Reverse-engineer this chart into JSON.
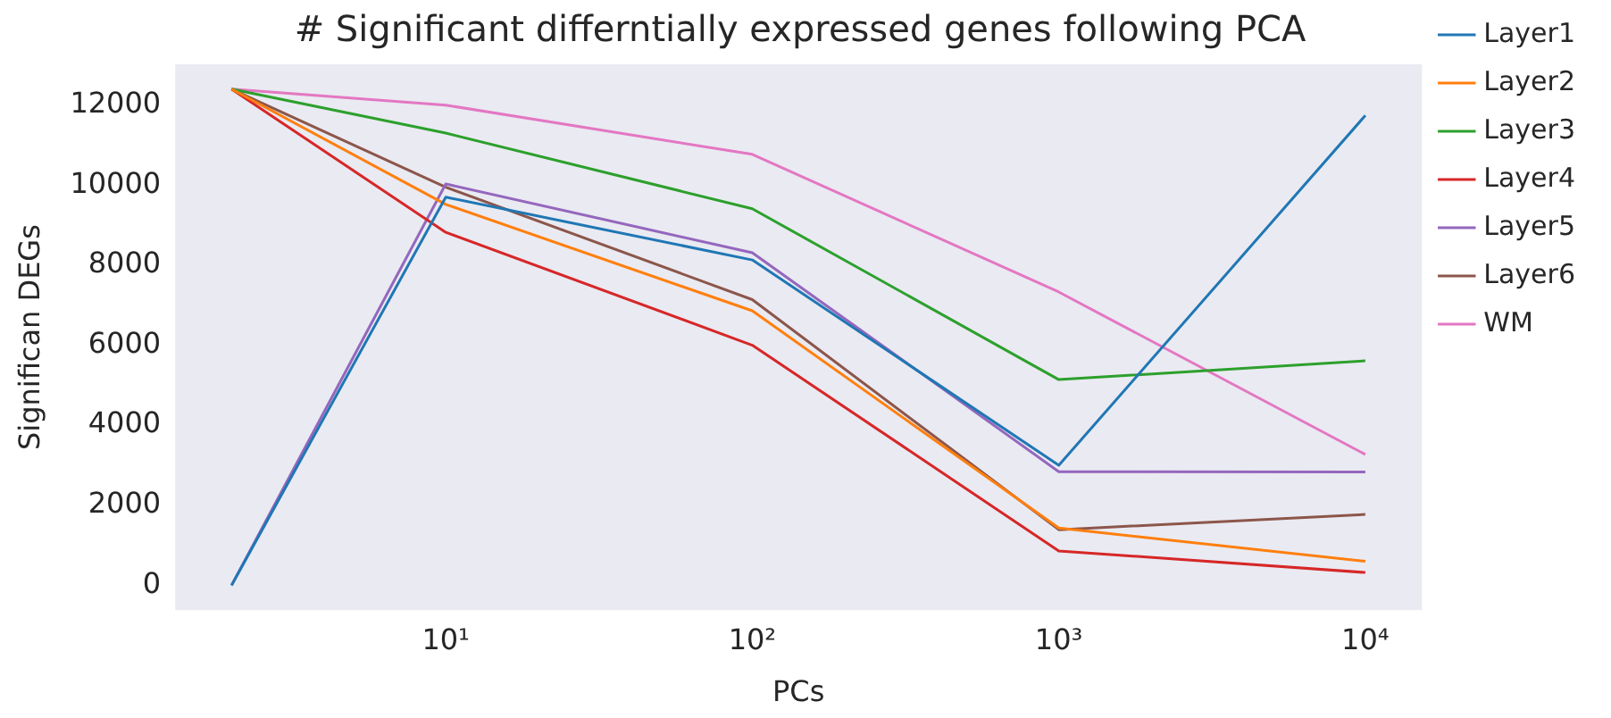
{
  "chart_data": {
    "type": "line",
    "title": "# Significant differntially expressed genes following PCA",
    "xlabel": "PCs",
    "ylabel": "Significan DEGs",
    "x": [
      2,
      10,
      100,
      1000,
      10000
    ],
    "series": [
      {
        "name": "Layer1",
        "color": "#1f77b4",
        "values": [
          0,
          9700,
          8130,
          3000,
          11740
        ]
      },
      {
        "name": "Layer2",
        "color": "#ff7f0e",
        "values": [
          12400,
          9520,
          6860,
          1430,
          600
        ]
      },
      {
        "name": "Layer3",
        "color": "#2ca02c",
        "values": [
          12400,
          11300,
          9410,
          5140,
          5610
        ]
      },
      {
        "name": "Layer4",
        "color": "#d62728",
        "values": [
          12400,
          8820,
          6000,
          860,
          320
        ]
      },
      {
        "name": "Layer5",
        "color": "#9467bd",
        "values": [
          0,
          10030,
          8310,
          2840,
          2830
        ]
      },
      {
        "name": "Layer6",
        "color": "#8c564b",
        "values": [
          12400,
          9950,
          7140,
          1390,
          1770
        ]
      },
      {
        "name": "WM",
        "color": "#e377c2",
        "values": [
          12400,
          12000,
          10770,
          7330,
          3270
        ]
      }
    ],
    "log": "x",
    "xlim": [
      1.31,
      15300
    ],
    "xticks": [
      {
        "value": 10,
        "label": "10¹"
      },
      {
        "value": 100,
        "label": "10²"
      },
      {
        "value": 1000,
        "label": "10³"
      },
      {
        "value": 10000,
        "label": "10⁴"
      }
    ],
    "ylim": [
      -620,
      13020
    ],
    "yticks": [
      0,
      2000,
      4000,
      6000,
      8000,
      10000,
      12000
    ],
    "grid": false,
    "legend": "right",
    "marker": "none",
    "line_style": "solid"
  }
}
